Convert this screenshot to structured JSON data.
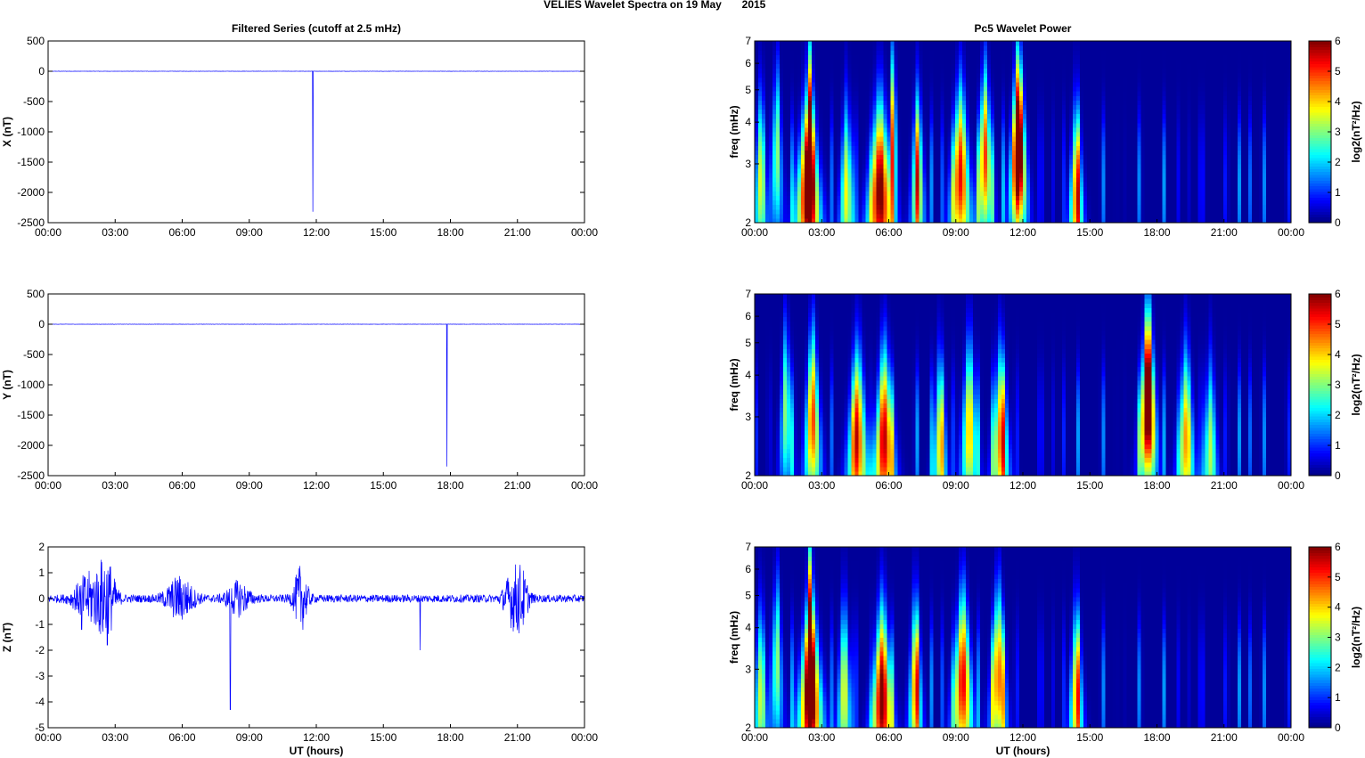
{
  "figure": {
    "title": "VELIES Wavelet Spectra on 19 May",
    "year": "2015",
    "left_column_title": "Filtered Series (cutoff at 2.5 mHz)",
    "right_column_title": "Pc5 Wavelet Power",
    "xlabel": "UT (hours)",
    "colorbar_label": "log2(nT²/Hz)",
    "freq_label": "freq (mHz)"
  },
  "colors": {
    "series_line": "#0000ff",
    "axis": "#000000",
    "background": "#ffffff",
    "jet_low": "#00008f",
    "jet_high": "#800000"
  },
  "x_ticks": [
    "00:00",
    "03:00",
    "06:00",
    "09:00",
    "12:00",
    "15:00",
    "18:00",
    "21:00",
    "00:00"
  ],
  "chart_data": [
    {
      "type": "line",
      "component": "X",
      "ylabel": "X (nT)",
      "xlim": [
        0,
        24
      ],
      "ylim": [
        -2500,
        500
      ],
      "yticks": [
        500,
        0,
        -500,
        -1000,
        -1500,
        -2000,
        -2500
      ],
      "x_unit": "hours UT",
      "baseline_noise_amplitude": 2,
      "spikes": [
        {
          "t": 11.85,
          "value": -2320
        }
      ]
    },
    {
      "type": "line",
      "component": "Y",
      "ylabel": "Y (nT)",
      "xlim": [
        0,
        24
      ],
      "ylim": [
        -2500,
        500
      ],
      "yticks": [
        500,
        0,
        -500,
        -1000,
        -1500,
        -2000,
        -2500
      ],
      "x_unit": "hours UT",
      "baseline_noise_amplitude": 2,
      "spikes": [
        {
          "t": 17.85,
          "value": -2350
        }
      ]
    },
    {
      "type": "line",
      "component": "Z",
      "ylabel": "Z (nT)",
      "xlim": [
        0,
        24
      ],
      "ylim": [
        -5,
        2
      ],
      "yticks": [
        2,
        1,
        0,
        -1,
        -2,
        -3,
        -4,
        -5
      ],
      "x_unit": "hours UT",
      "baseline_noise_amplitude": 0.15,
      "bursts": [
        {
          "t": 1.8,
          "width": 0.6,
          "amp": 0.9
        },
        {
          "t": 2.6,
          "width": 0.4,
          "amp": 1.5
        },
        {
          "t": 5.9,
          "width": 0.6,
          "amp": 0.8
        },
        {
          "t": 8.5,
          "width": 0.5,
          "amp": 0.6
        },
        {
          "t": 11.3,
          "width": 0.3,
          "amp": 1.2
        },
        {
          "t": 20.8,
          "width": 0.4,
          "amp": 1.0
        },
        {
          "t": 21.2,
          "width": 0.3,
          "amp": 0.8
        }
      ],
      "spikes": [
        {
          "t": 2.65,
          "value": -1.8
        },
        {
          "t": 8.15,
          "value": -4.3
        },
        {
          "t": 16.65,
          "value": -2.0
        },
        {
          "t": 1.5,
          "value": -1.2
        }
      ]
    },
    {
      "type": "heatmap",
      "component": "X",
      "ylabel": "freq (mHz)",
      "y_scale": "log",
      "ylim": [
        2,
        7
      ],
      "yticks": [
        2,
        3,
        4,
        5,
        6,
        7
      ],
      "colorbar": {
        "range": [
          0,
          6
        ],
        "ticks": [
          0,
          1,
          2,
          3,
          4,
          5,
          6
        ],
        "colormap": "jet"
      },
      "blobs": [
        {
          "t": 2.4,
          "f": 2.6,
          "w": 0.35,
          "p": 6.0
        },
        {
          "t": 2.5,
          "f": 4.0,
          "w": 0.15,
          "p": 4.2
        },
        {
          "t": 5.6,
          "f": 2.5,
          "w": 0.35,
          "p": 6.0
        },
        {
          "t": 6.2,
          "f": 4.0,
          "w": 0.15,
          "p": 4.0
        },
        {
          "t": 9.2,
          "f": 2.8,
          "w": 0.3,
          "p": 5.2
        },
        {
          "t": 10.3,
          "f": 3.2,
          "w": 0.25,
          "p": 4.8
        },
        {
          "t": 11.8,
          "f": 3.5,
          "w": 0.28,
          "p": 7.5
        },
        {
          "t": 14.4,
          "f": 2.4,
          "w": 0.2,
          "p": 4.4
        },
        {
          "t": 7.3,
          "f": 2.7,
          "w": 0.2,
          "p": 4.0
        },
        {
          "t": 4.1,
          "f": 2.5,
          "w": 0.2,
          "p": 3.6
        },
        {
          "t": 0.3,
          "f": 2.8,
          "w": 0.15,
          "p": 3.8
        },
        {
          "t": 1.0,
          "f": 3.3,
          "w": 0.2,
          "p": 3.0
        }
      ]
    },
    {
      "type": "heatmap",
      "component": "Y",
      "ylabel": "freq (mHz)",
      "y_scale": "log",
      "ylim": [
        2,
        7
      ],
      "yticks": [
        2,
        3,
        4,
        5,
        6,
        7
      ],
      "colorbar": {
        "range": [
          0,
          6
        ],
        "ticks": [
          0,
          1,
          2,
          3,
          4,
          5,
          6
        ],
        "colormap": "jet"
      },
      "blobs": [
        {
          "t": 17.6,
          "f": 3.5,
          "w": 0.28,
          "p": 7.5
        },
        {
          "t": 2.6,
          "f": 3.0,
          "w": 0.25,
          "p": 4.8
        },
        {
          "t": 4.6,
          "f": 2.6,
          "w": 0.3,
          "p": 4.8
        },
        {
          "t": 5.8,
          "f": 2.6,
          "w": 0.3,
          "p": 5.5
        },
        {
          "t": 9.6,
          "f": 2.8,
          "w": 0.25,
          "p": 4.0
        },
        {
          "t": 11.0,
          "f": 2.6,
          "w": 0.25,
          "p": 4.4
        },
        {
          "t": 19.3,
          "f": 2.6,
          "w": 0.25,
          "p": 4.2
        },
        {
          "t": 20.4,
          "f": 2.4,
          "w": 0.2,
          "p": 3.2
        },
        {
          "t": 8.3,
          "f": 2.5,
          "w": 0.2,
          "p": 3.6
        },
        {
          "t": 1.4,
          "f": 3.2,
          "w": 0.2,
          "p": 3.0
        }
      ]
    },
    {
      "type": "heatmap",
      "component": "Z",
      "ylabel": "freq (mHz)",
      "y_scale": "log",
      "ylim": [
        2,
        7
      ],
      "yticks": [
        2,
        3,
        4,
        5,
        6,
        7
      ],
      "colorbar": {
        "range": [
          0,
          6
        ],
        "ticks": [
          0,
          1,
          2,
          3,
          4,
          5,
          6
        ],
        "colormap": "jet"
      },
      "blobs": [
        {
          "t": 2.5,
          "f": 2.6,
          "w": 0.35,
          "p": 6.0
        },
        {
          "t": 2.5,
          "f": 4.2,
          "w": 0.15,
          "p": 4.2
        },
        {
          "t": 5.7,
          "f": 2.5,
          "w": 0.3,
          "p": 6.0
        },
        {
          "t": 9.3,
          "f": 2.8,
          "w": 0.3,
          "p": 5.3
        },
        {
          "t": 10.9,
          "f": 2.9,
          "w": 0.25,
          "p": 4.6
        },
        {
          "t": 7.2,
          "f": 2.7,
          "w": 0.2,
          "p": 4.2
        },
        {
          "t": 14.4,
          "f": 2.5,
          "w": 0.2,
          "p": 4.0
        },
        {
          "t": 4.0,
          "f": 2.6,
          "w": 0.2,
          "p": 3.6
        },
        {
          "t": 1.0,
          "f": 3.2,
          "w": 0.2,
          "p": 3.0
        },
        {
          "t": 0.3,
          "f": 2.6,
          "w": 0.15,
          "p": 3.6
        }
      ]
    }
  ]
}
